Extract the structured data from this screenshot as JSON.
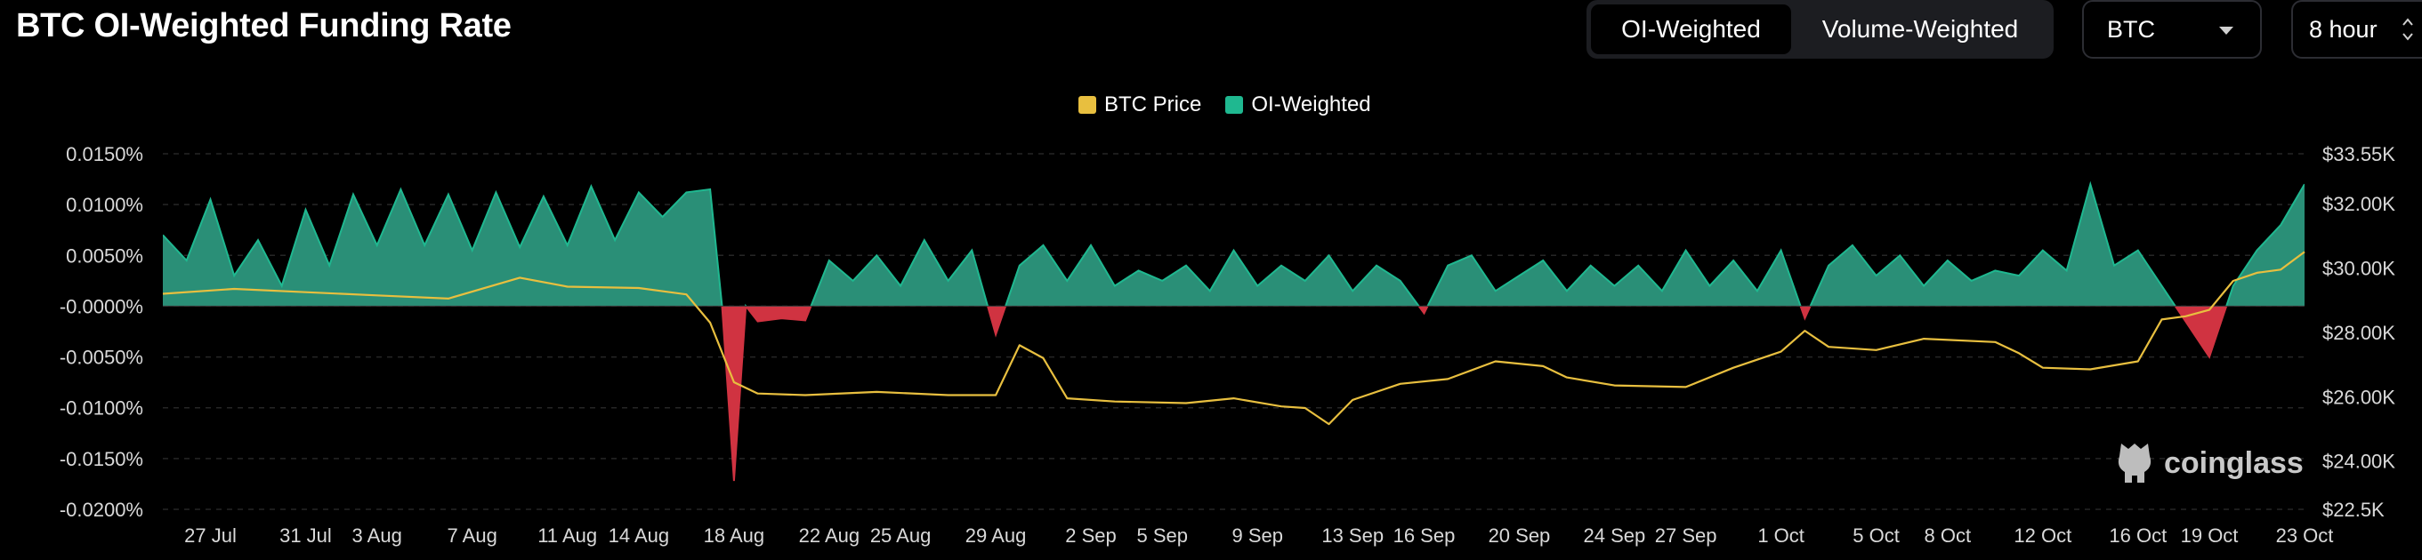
{
  "page": {
    "title": "BTC OI-Weighted Funding Rate"
  },
  "controls": {
    "tabs": [
      {
        "label": "OI-Weighted",
        "active": true
      },
      {
        "label": "Volume-Weighted",
        "active": false
      }
    ],
    "coin_select": {
      "value": "BTC"
    },
    "interval_select": {
      "value": "8 hour"
    }
  },
  "watermark": {
    "text": "coinglass"
  },
  "colors": {
    "background": "#000000",
    "btc_price": "#e8bf3f",
    "positive_area": "#2a8f77",
    "positive_line": "#1fb890",
    "negative_area": "#d03341",
    "grid": "#262626",
    "axis_text": "#d9d9d9"
  },
  "chart_data": {
    "type": "area",
    "title": "BTC OI-Weighted Funding Rate",
    "legend": {
      "position": "top-center",
      "entries": [
        "BTC Price",
        "OI-Weighted"
      ]
    },
    "grid": true,
    "x": {
      "type": "date",
      "range": [
        "2023-07-25",
        "2023-10-23"
      ],
      "tick_labels": [
        "27 Jul",
        "31 Jul",
        "3 Aug",
        "7 Aug",
        "11 Aug",
        "14 Aug",
        "18 Aug",
        "22 Aug",
        "25 Aug",
        "29 Aug",
        "2 Sep",
        "5 Sep",
        "9 Sep",
        "13 Sep",
        "16 Sep",
        "20 Sep",
        "24 Sep",
        "27 Sep",
        "1 Oct",
        "5 Oct",
        "8 Oct",
        "12 Oct",
        "16 Oct",
        "19 Oct",
        "23 Oct"
      ]
    },
    "y_left": {
      "unit": "%",
      "range": [
        -0.02,
        0.015
      ],
      "tick_values": [
        0.015,
        0.01,
        0.005,
        0,
        -0.005,
        -0.01,
        -0.015,
        -0.02
      ],
      "tick_labels": [
        "0.0150%",
        "0.0100%",
        "0.0050%",
        "-0.0000%",
        "-0.0050%",
        "-0.0100%",
        "-0.0150%",
        "-0.0200%"
      ]
    },
    "y_right": {
      "unit": "USD",
      "range": [
        22500,
        33550
      ],
      "tick_values": [
        33550,
        32000,
        30000,
        28000,
        26000,
        24000,
        22500
      ],
      "tick_labels": [
        "$33.55K",
        "$32.00K",
        "$30.00K",
        "$28.00K",
        "$26.00K",
        "$24.00K",
        "$22.5K"
      ]
    },
    "series": [
      {
        "name": "OI-Weighted",
        "axis": "left",
        "points": [
          [
            "2023-07-25",
            0.007
          ],
          [
            "2023-07-26",
            0.0045
          ],
          [
            "2023-07-27",
            0.0105
          ],
          [
            "2023-07-28",
            0.003
          ],
          [
            "2023-07-29",
            0.0065
          ],
          [
            "2023-07-30",
            0.002
          ],
          [
            "2023-07-31",
            0.0095
          ],
          [
            "2023-08-01",
            0.004
          ],
          [
            "2023-08-02",
            0.011
          ],
          [
            "2023-08-03",
            0.006
          ],
          [
            "2023-08-04",
            0.0115
          ],
          [
            "2023-08-05",
            0.006
          ],
          [
            "2023-08-06",
            0.011
          ],
          [
            "2023-08-07",
            0.0055
          ],
          [
            "2023-08-08",
            0.0112
          ],
          [
            "2023-08-09",
            0.0058
          ],
          [
            "2023-08-10",
            0.0108
          ],
          [
            "2023-08-11",
            0.006
          ],
          [
            "2023-08-12",
            0.0118
          ],
          [
            "2023-08-13",
            0.0065
          ],
          [
            "2023-08-14",
            0.0112
          ],
          [
            "2023-08-15",
            0.0088
          ],
          [
            "2023-08-16",
            0.0112
          ],
          [
            "2023-08-17",
            0.0115
          ],
          [
            "2023-08-17T12:00",
            0.0
          ],
          [
            "2023-08-18",
            -0.0172
          ],
          [
            "2023-08-18T12:00",
            0.0
          ],
          [
            "2023-08-19",
            -0.0015
          ],
          [
            "2023-08-20",
            -0.0012
          ],
          [
            "2023-08-21",
            -0.0014
          ],
          [
            "2023-08-22",
            0.0045
          ],
          [
            "2023-08-23",
            0.0025
          ],
          [
            "2023-08-24",
            0.005
          ],
          [
            "2023-08-25",
            0.002
          ],
          [
            "2023-08-26",
            0.0065
          ],
          [
            "2023-08-27",
            0.0025
          ],
          [
            "2023-08-28",
            0.0055
          ],
          [
            "2023-08-29",
            -0.0028
          ],
          [
            "2023-08-30",
            0.004
          ],
          [
            "2023-08-31",
            0.006
          ],
          [
            "2023-09-01",
            0.0025
          ],
          [
            "2023-09-02",
            0.006
          ],
          [
            "2023-09-03",
            0.002
          ],
          [
            "2023-09-04",
            0.0035
          ],
          [
            "2023-09-05",
            0.0025
          ],
          [
            "2023-09-06",
            0.004
          ],
          [
            "2023-09-07",
            0.0015
          ],
          [
            "2023-09-08",
            0.0055
          ],
          [
            "2023-09-09",
            0.002
          ],
          [
            "2023-09-10",
            0.004
          ],
          [
            "2023-09-11",
            0.0025
          ],
          [
            "2023-09-12",
            0.005
          ],
          [
            "2023-09-13",
            0.0015
          ],
          [
            "2023-09-14",
            0.004
          ],
          [
            "2023-09-15",
            0.0025
          ],
          [
            "2023-09-16",
            -0.0007
          ],
          [
            "2023-09-17",
            0.004
          ],
          [
            "2023-09-18",
            0.005
          ],
          [
            "2023-09-19",
            0.0015
          ],
          [
            "2023-09-20",
            0.003
          ],
          [
            "2023-09-21",
            0.0045
          ],
          [
            "2023-09-22",
            0.0015
          ],
          [
            "2023-09-23",
            0.004
          ],
          [
            "2023-09-24",
            0.002
          ],
          [
            "2023-09-25",
            0.004
          ],
          [
            "2023-09-26",
            0.0015
          ],
          [
            "2023-09-27",
            0.0055
          ],
          [
            "2023-09-28",
            0.002
          ],
          [
            "2023-09-29",
            0.0045
          ],
          [
            "2023-09-30",
            0.0015
          ],
          [
            "2023-10-01",
            0.0055
          ],
          [
            "2023-10-02",
            -0.0012
          ],
          [
            "2023-10-03",
            0.004
          ],
          [
            "2023-10-04",
            0.006
          ],
          [
            "2023-10-05",
            0.003
          ],
          [
            "2023-10-06",
            0.005
          ],
          [
            "2023-10-07",
            0.002
          ],
          [
            "2023-10-08",
            0.0045
          ],
          [
            "2023-10-09",
            0.0025
          ],
          [
            "2023-10-10",
            0.0035
          ],
          [
            "2023-10-11",
            0.003
          ],
          [
            "2023-10-12",
            0.0055
          ],
          [
            "2023-10-13",
            0.0035
          ],
          [
            "2023-10-14",
            0.012
          ],
          [
            "2023-10-15",
            0.004
          ],
          [
            "2023-10-16",
            0.0055
          ],
          [
            "2023-10-17",
            0.002
          ],
          [
            "2023-10-18",
            -0.0015
          ],
          [
            "2023-10-19",
            -0.005
          ],
          [
            "2023-10-20",
            0.002
          ],
          [
            "2023-10-21",
            0.0055
          ],
          [
            "2023-10-22",
            0.008
          ],
          [
            "2023-10-23",
            0.012
          ]
        ]
      },
      {
        "name": "BTC Price",
        "axis": "right",
        "points": [
          [
            "2023-07-25",
            29200
          ],
          [
            "2023-07-28",
            29350
          ],
          [
            "2023-07-31",
            29250
          ],
          [
            "2023-08-03",
            29150
          ],
          [
            "2023-08-06",
            29050
          ],
          [
            "2023-08-09",
            29700
          ],
          [
            "2023-08-11",
            29420
          ],
          [
            "2023-08-14",
            29380
          ],
          [
            "2023-08-16",
            29180
          ],
          [
            "2023-08-17",
            28300
          ],
          [
            "2023-08-18",
            26450
          ],
          [
            "2023-08-19",
            26100
          ],
          [
            "2023-08-21",
            26050
          ],
          [
            "2023-08-24",
            26150
          ],
          [
            "2023-08-27",
            26050
          ],
          [
            "2023-08-29",
            26050
          ],
          [
            "2023-08-30",
            27600
          ],
          [
            "2023-08-31",
            27200
          ],
          [
            "2023-09-01",
            25950
          ],
          [
            "2023-09-03",
            25850
          ],
          [
            "2023-09-06",
            25800
          ],
          [
            "2023-09-08",
            25950
          ],
          [
            "2023-09-10",
            25700
          ],
          [
            "2023-09-11",
            25650
          ],
          [
            "2023-09-12",
            25150
          ],
          [
            "2023-09-13",
            25900
          ],
          [
            "2023-09-15",
            26400
          ],
          [
            "2023-09-17",
            26550
          ],
          [
            "2023-09-19",
            27100
          ],
          [
            "2023-09-21",
            26950
          ],
          [
            "2023-09-22",
            26600
          ],
          [
            "2023-09-24",
            26350
          ],
          [
            "2023-09-27",
            26300
          ],
          [
            "2023-09-29",
            26900
          ],
          [
            "2023-10-01",
            27400
          ],
          [
            "2023-10-02",
            28050
          ],
          [
            "2023-10-03",
            27550
          ],
          [
            "2023-10-05",
            27450
          ],
          [
            "2023-10-07",
            27800
          ],
          [
            "2023-10-10",
            27700
          ],
          [
            "2023-10-11",
            27350
          ],
          [
            "2023-10-12",
            26900
          ],
          [
            "2023-10-14",
            26850
          ],
          [
            "2023-10-16",
            27100
          ],
          [
            "2023-10-17",
            28400
          ],
          [
            "2023-10-18",
            28500
          ],
          [
            "2023-10-19",
            28700
          ],
          [
            "2023-10-20",
            29600
          ],
          [
            "2023-10-21",
            29850
          ],
          [
            "2023-10-22",
            29950
          ],
          [
            "2023-10-23",
            30500
          ]
        ]
      }
    ]
  }
}
